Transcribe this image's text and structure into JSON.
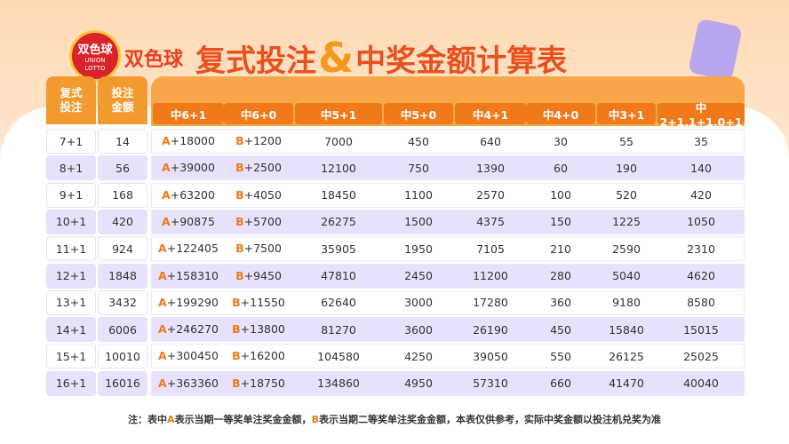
{
  "header": {
    "logo": "双色球",
    "logo_sub": "UNION LOTTO",
    "title_left": "复式投注",
    "title_amp": "&",
    "title_right": "中奖金额计算表"
  },
  "table": {
    "columns": [
      "复式投注",
      "投注金额",
      "中6+1",
      "中6+0",
      "中5+1",
      "中5+0",
      "中4+1",
      "中4+0",
      "中3+1",
      "中2+1,1+1,0+1"
    ],
    "rows": [
      [
        "7+1",
        "14",
        "A+18000",
        "B+1200",
        "7000",
        "450",
        "640",
        "30",
        "55",
        "35"
      ],
      [
        "8+1",
        "56",
        "A+39000",
        "B+2500",
        "12100",
        "750",
        "1390",
        "60",
        "190",
        "140"
      ],
      [
        "9+1",
        "168",
        "A+63200",
        "B+4050",
        "18450",
        "1100",
        "2570",
        "100",
        "520",
        "420"
      ],
      [
        "10+1",
        "420",
        "A+90875",
        "B+5700",
        "26275",
        "1500",
        "4375",
        "150",
        "1225",
        "1050"
      ],
      [
        "11+1",
        "924",
        "A+122405",
        "B+7500",
        "35905",
        "1950",
        "7105",
        "210",
        "2590",
        "2310"
      ],
      [
        "12+1",
        "1848",
        "A+158310",
        "B+9450",
        "47810",
        "2450",
        "11200",
        "280",
        "5040",
        "4620"
      ],
      [
        "13+1",
        "3432",
        "A+199290",
        "B+11550",
        "62640",
        "3000",
        "17280",
        "360",
        "9180",
        "8580"
      ],
      [
        "14+1",
        "6006",
        "A+246270",
        "B+13800",
        "81270",
        "3600",
        "26190",
        "450",
        "15840",
        "15015"
      ],
      [
        "15+1",
        "10010",
        "A+300450",
        "B+16200",
        "104580",
        "4250",
        "39050",
        "550",
        "26125",
        "25025"
      ],
      [
        "16+1",
        "16016",
        "A+363360",
        "B+18750",
        "134860",
        "4950",
        "57310",
        "660",
        "41470",
        "40040"
      ]
    ]
  },
  "note": [
    "注：表中",
    "A",
    "表示当期一等奖单注奖金金额，",
    "B",
    "表示当期二等奖单注奖金金额，本表仅供参考，实际中奖金额以投注机兑奖为准"
  ]
}
